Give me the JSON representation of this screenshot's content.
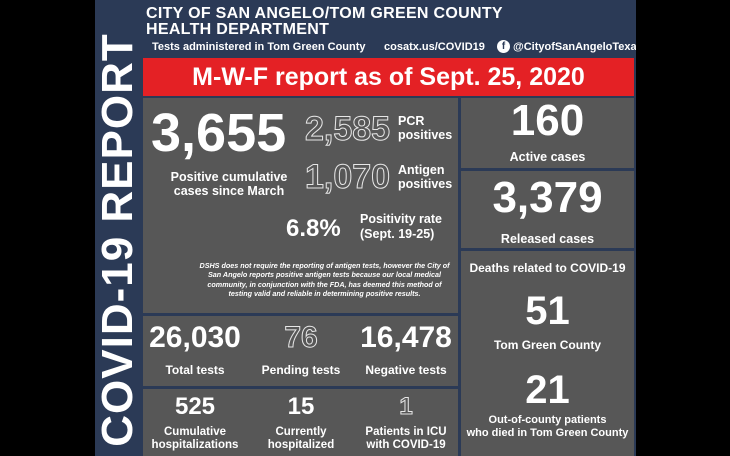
{
  "header": {
    "title_line1": "CITY OF SAN ANGELO/TOM GREEN COUNTY",
    "title_line2": "HEALTH DEPARTMENT",
    "tests_text": "Tests administered in Tom Green County",
    "website": "cosatx.us/COVID19",
    "facebook_handle": "@CityofSanAngeloTexas",
    "facebook_icon": "facebook-icon"
  },
  "sidebar": {
    "label": "COVID-19 REPORT"
  },
  "banner": {
    "text": "M-W-F report as of Sept. 25, 2020",
    "color": "#e42125"
  },
  "positives": {
    "total": "3,655",
    "total_label_1": "Positive cumulative",
    "total_label_2": "cases since March",
    "pcr_value": "2,585",
    "pcr_label_1": "PCR",
    "pcr_label_2": "positives",
    "antigen_value": "1,070",
    "antigen_label_1": "Antigen",
    "antigen_label_2": "positives",
    "positivity_value": "6.8%",
    "positivity_label_1": "Positivity rate",
    "positivity_label_2": "(Sept. 19-25)"
  },
  "note": {
    "line1": "DSHS does not require the reporting of antigen tests, however the City of",
    "line2": "San Angelo reports positive antigen tests because our local medical",
    "line3": "community, in conjunction with the FDA, has deemed this method of",
    "line4": "testing valid and reliable in determining positive results."
  },
  "cases": {
    "active_value": "160",
    "active_label": "Active cases",
    "released_value": "3,379",
    "released_label": "Released cases"
  },
  "deaths": {
    "heading": "Deaths related to COVID-19",
    "tgc_value": "51",
    "tgc_label": "Tom Green County",
    "ooc_value": "21",
    "ooc_label_1": "Out-of-county patients",
    "ooc_label_2": "who died in Tom Green County"
  },
  "tests": {
    "total_value": "26,030",
    "total_label": "Total tests",
    "pending_value": "76",
    "pending_label": "Pending tests",
    "negative_value": "16,478",
    "negative_label": "Negative tests"
  },
  "hospital": {
    "cumulative_value": "525",
    "cumulative_label_1": "Cumulative",
    "cumulative_label_2": "hospitalizations",
    "current_value": "15",
    "current_label_1": "Currently",
    "current_label_2": "hospitalized",
    "icu_value": "1",
    "icu_label_1": "Patients in ICU",
    "icu_label_2": "with COVID-19"
  }
}
